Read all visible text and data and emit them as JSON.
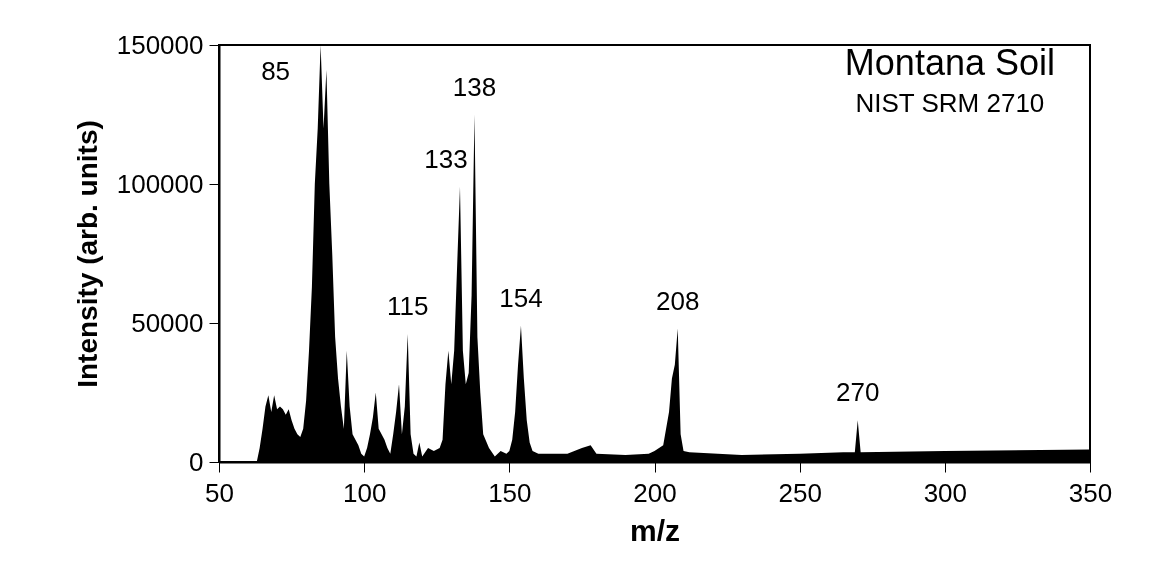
{
  "chart_data": {
    "type": "area",
    "title": "Montana Soil",
    "subtitle": "NIST SRM 2710",
    "xlabel": "m/z",
    "ylabel": "Intensity (arb. units)",
    "color": "#000000",
    "xlim": [
      50,
      350
    ],
    "xticks": [
      50,
      100,
      150,
      200,
      250,
      300,
      350
    ],
    "ylim": [
      0,
      150000
    ],
    "yticks": [
      0,
      50000,
      100000,
      150000
    ],
    "x": [
      63,
      64,
      65,
      66,
      67,
      68,
      69,
      70,
      71,
      72,
      73,
      74,
      75,
      76,
      77,
      78,
      79,
      80,
      81,
      82,
      83,
      84,
      85,
      86,
      87,
      88,
      89,
      90,
      91,
      92,
      93,
      94,
      95,
      96,
      97,
      98,
      99,
      100,
      101,
      102,
      103,
      104,
      105,
      106,
      107,
      108,
      109,
      110,
      111,
      112,
      113,
      114,
      115,
      116,
      117,
      118,
      119,
      120,
      122,
      124,
      126,
      127,
      128,
      129,
      130,
      131,
      132,
      133,
      134,
      135,
      136,
      137,
      138,
      139,
      140,
      141,
      143,
      145,
      147,
      149,
      150,
      151,
      152,
      153,
      154,
      155,
      156,
      157,
      158,
      160,
      170,
      175,
      178,
      180,
      190,
      198,
      200,
      203,
      205,
      206,
      207,
      208,
      209,
      210,
      212,
      230,
      250,
      265,
      268,
      269,
      270,
      271,
      300,
      350
    ],
    "values": [
      0,
      5000,
      12000,
      20000,
      24000,
      18000,
      24000,
      19000,
      20000,
      19000,
      17000,
      19000,
      15000,
      12000,
      10000,
      9000,
      12000,
      22000,
      40000,
      63000,
      100000,
      120000,
      150000,
      120000,
      141000,
      100000,
      75000,
      45000,
      30000,
      20000,
      12000,
      40000,
      20000,
      10000,
      8000,
      6000,
      3000,
      2000,
      5000,
      10000,
      16000,
      25000,
      12000,
      10000,
      8000,
      5000,
      3000,
      10000,
      18000,
      28000,
      10000,
      20000,
      46000,
      10000,
      3000,
      2000,
      7000,
      2000,
      5000,
      4000,
      5000,
      8000,
      28000,
      40000,
      28000,
      40000,
      70000,
      99000,
      40000,
      28000,
      32000,
      60000,
      125000,
      45000,
      25000,
      10000,
      5000,
      2000,
      4000,
      3000,
      4000,
      8000,
      18000,
      35000,
      49000,
      30000,
      15000,
      7000,
      4000,
      3000,
      3000,
      5000,
      6000,
      3000,
      2500,
      3000,
      4000,
      6000,
      18000,
      30000,
      35000,
      48000,
      10000,
      4000,
      3500,
      2500,
      3000,
      3500,
      3500,
      3500,
      15000,
      3500,
      4000,
      4500
    ],
    "annotations": [
      {
        "text": "85",
        "x": 85,
        "y": 150000
      },
      {
        "text": "133",
        "x": 133,
        "y": 99000
      },
      {
        "text": "138",
        "x": 138,
        "y": 125000
      },
      {
        "text": "115",
        "x": 115,
        "y": 46000
      },
      {
        "text": "154",
        "x": 154,
        "y": 49000
      },
      {
        "text": "208",
        "x": 208,
        "y": 48000
      },
      {
        "text": "270",
        "x": 270,
        "y": 15000
      }
    ]
  }
}
